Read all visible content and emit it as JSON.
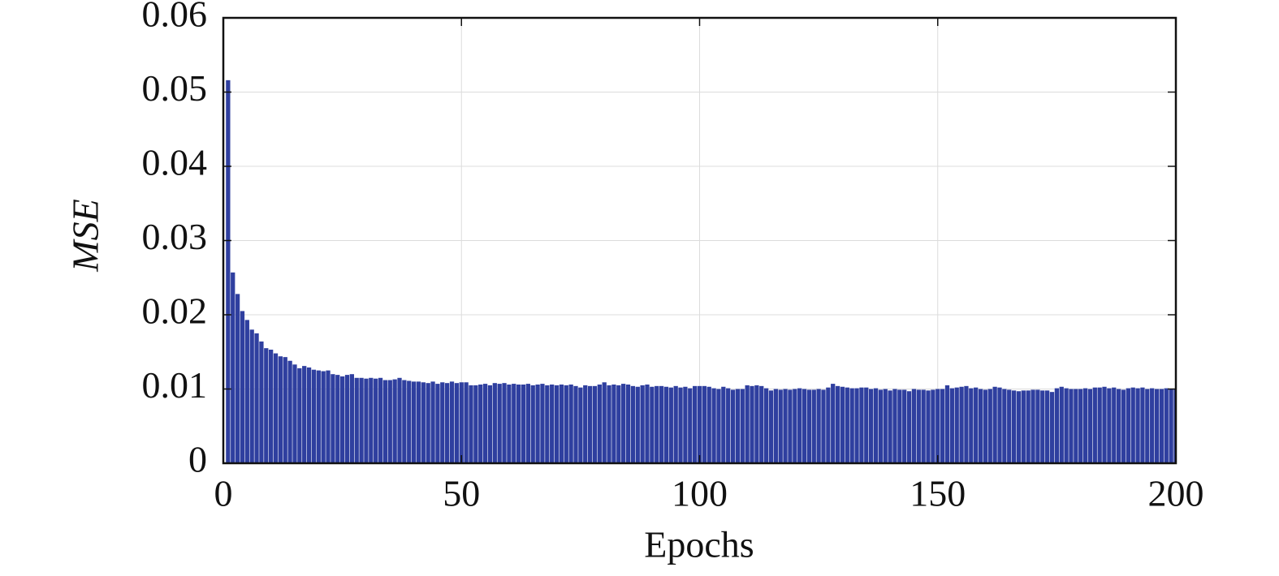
{
  "chart_data": {
    "type": "bar",
    "xlabel": "Epochs",
    "ylabel": "MSE",
    "color": "#2f3f9f",
    "grid": true,
    "xlim": [
      0,
      200
    ],
    "xticks": [
      0,
      50,
      100,
      150,
      200
    ],
    "ylim": [
      0,
      0.06
    ],
    "yticks": [
      0,
      0.01,
      0.02,
      0.03,
      0.04,
      0.05,
      0.06
    ],
    "x": [
      1,
      2,
      3,
      4,
      5,
      6,
      7,
      8,
      9,
      10,
      11,
      12,
      13,
      14,
      15,
      16,
      17,
      18,
      19,
      20,
      21,
      22,
      23,
      24,
      25,
      26,
      27,
      28,
      29,
      30,
      31,
      32,
      33,
      34,
      35,
      36,
      37,
      38,
      39,
      40,
      41,
      42,
      43,
      44,
      45,
      46,
      47,
      48,
      49,
      50,
      51,
      52,
      53,
      54,
      55,
      56,
      57,
      58,
      59,
      60,
      61,
      62,
      63,
      64,
      65,
      66,
      67,
      68,
      69,
      70,
      71,
      72,
      73,
      74,
      75,
      76,
      77,
      78,
      79,
      80,
      81,
      82,
      83,
      84,
      85,
      86,
      87,
      88,
      89,
      90,
      91,
      92,
      93,
      94,
      95,
      96,
      97,
      98,
      99,
      100,
      101,
      102,
      103,
      104,
      105,
      106,
      107,
      108,
      109,
      110,
      111,
      112,
      113,
      114,
      115,
      116,
      117,
      118,
      119,
      120,
      121,
      122,
      123,
      124,
      125,
      126,
      127,
      128,
      129,
      130,
      131,
      132,
      133,
      134,
      135,
      136,
      137,
      138,
      139,
      140,
      141,
      142,
      143,
      144,
      145,
      146,
      147,
      148,
      149,
      150,
      151,
      152,
      153,
      154,
      155,
      156,
      157,
      158,
      159,
      160,
      161,
      162,
      163,
      164,
      165,
      166,
      167,
      168,
      169,
      170,
      171,
      172,
      173,
      174,
      175,
      176,
      177,
      178,
      179,
      180,
      181,
      182,
      183,
      184,
      185,
      186,
      187,
      188,
      189,
      190,
      191,
      192,
      193,
      194,
      195,
      196,
      197,
      198,
      199,
      200
    ],
    "values": [
      0.0516,
      0.0257,
      0.0228,
      0.0205,
      0.0193,
      0.018,
      0.0175,
      0.0164,
      0.0155,
      0.0153,
      0.0148,
      0.0144,
      0.0143,
      0.0138,
      0.0133,
      0.0128,
      0.0131,
      0.0129,
      0.0126,
      0.0125,
      0.0124,
      0.0125,
      0.012,
      0.0119,
      0.0117,
      0.0119,
      0.012,
      0.0115,
      0.0115,
      0.0114,
      0.0115,
      0.0114,
      0.0115,
      0.0112,
      0.0112,
      0.0113,
      0.0115,
      0.0112,
      0.0111,
      0.011,
      0.011,
      0.0109,
      0.0108,
      0.011,
      0.0107,
      0.0109,
      0.0108,
      0.011,
      0.0108,
      0.0109,
      0.0109,
      0.0105,
      0.0105,
      0.0106,
      0.0107,
      0.0105,
      0.0108,
      0.0107,
      0.0108,
      0.0106,
      0.0107,
      0.0106,
      0.0106,
      0.0107,
      0.0105,
      0.0106,
      0.0107,
      0.0105,
      0.0106,
      0.0105,
      0.0106,
      0.0105,
      0.0106,
      0.0104,
      0.0102,
      0.0105,
      0.0104,
      0.0104,
      0.0106,
      0.0109,
      0.0105,
      0.0106,
      0.0105,
      0.0107,
      0.0106,
      0.0104,
      0.0103,
      0.0105,
      0.0106,
      0.0103,
      0.0104,
      0.0104,
      0.0103,
      0.0102,
      0.0104,
      0.0102,
      0.0103,
      0.0101,
      0.0104,
      0.0104,
      0.0104,
      0.0103,
      0.0101,
      0.01,
      0.0103,
      0.0101,
      0.0099,
      0.01,
      0.01,
      0.0105,
      0.0104,
      0.0105,
      0.0104,
      0.0101,
      0.0098,
      0.01,
      0.0099,
      0.01,
      0.0099,
      0.01,
      0.0101,
      0.01,
      0.0099,
      0.0099,
      0.01,
      0.0099,
      0.0102,
      0.0107,
      0.0104,
      0.0103,
      0.0102,
      0.0101,
      0.0101,
      0.0102,
      0.0102,
      0.01,
      0.0101,
      0.0099,
      0.01,
      0.0098,
      0.01,
      0.0099,
      0.0099,
      0.0097,
      0.01,
      0.0099,
      0.0099,
      0.0098,
      0.0099,
      0.01,
      0.01,
      0.0105,
      0.0101,
      0.0102,
      0.0103,
      0.0104,
      0.0101,
      0.0102,
      0.01,
      0.0099,
      0.01,
      0.0103,
      0.0102,
      0.01,
      0.0099,
      0.0098,
      0.0097,
      0.0098,
      0.0098,
      0.0099,
      0.0099,
      0.0098,
      0.0098,
      0.0096,
      0.0101,
      0.0103,
      0.0101,
      0.01,
      0.01,
      0.01,
      0.0101,
      0.01,
      0.0102,
      0.0102,
      0.0103,
      0.0101,
      0.0102,
      0.01,
      0.0099,
      0.0101,
      0.0102,
      0.0101,
      0.0102,
      0.01,
      0.0101,
      0.01,
      0.01,
      0.0101,
      0.01,
      0.01
    ]
  }
}
